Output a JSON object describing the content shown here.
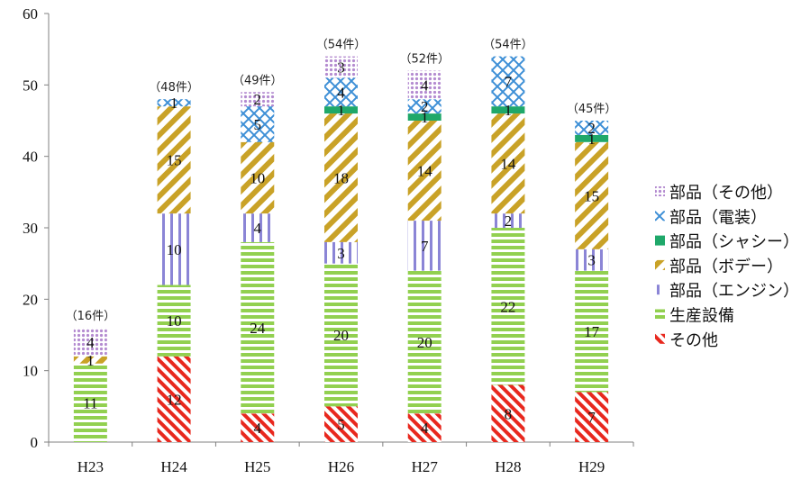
{
  "chart_data": {
    "type": "bar",
    "stacked": true,
    "categories": [
      "H23",
      "H24",
      "H25",
      "H26",
      "H27",
      "H28",
      "H29"
    ],
    "totals": [
      "（16件）",
      "（48件）",
      "（49件）",
      "（54件）",
      "（52件）",
      "（54件）",
      "（45件）"
    ],
    "ylim": [
      0,
      60
    ],
    "yticks": [
      0,
      10,
      20,
      30,
      40,
      50,
      60
    ],
    "grid": false,
    "legend_position": "right",
    "series": [
      {
        "name": "その他",
        "color": "#e8281e",
        "pattern": "diag-red",
        "values": [
          0,
          12,
          4,
          5,
          4,
          8,
          7
        ]
      },
      {
        "name": "生産設備",
        "color": "#92d050",
        "pattern": "hstripe-green",
        "values": [
          11,
          10,
          24,
          20,
          20,
          22,
          17
        ]
      },
      {
        "name": "部品（エンジン）",
        "color": "#8b85d6",
        "pattern": "vstripe-purple",
        "values": [
          0,
          10,
          4,
          3,
          7,
          2,
          3
        ]
      },
      {
        "name": "部品（ボデー）",
        "color": "#c9a227",
        "pattern": "diag-gold",
        "values": [
          1,
          15,
          10,
          18,
          14,
          14,
          15
        ]
      },
      {
        "name": "部品（シャシー）",
        "color": "#1fa86a",
        "pattern": "solid-green",
        "values": [
          0,
          0,
          0,
          1,
          1,
          1,
          1
        ]
      },
      {
        "name": "部品（電装）",
        "color": "#3d8fd6",
        "pattern": "cross-blue",
        "values": [
          0,
          1,
          5,
          4,
          2,
          7,
          2
        ]
      },
      {
        "name": "部品（その他）",
        "color": "#b48bd0",
        "pattern": "dots-purple",
        "values": [
          4,
          0,
          2,
          3,
          4,
          0,
          0
        ]
      }
    ]
  }
}
